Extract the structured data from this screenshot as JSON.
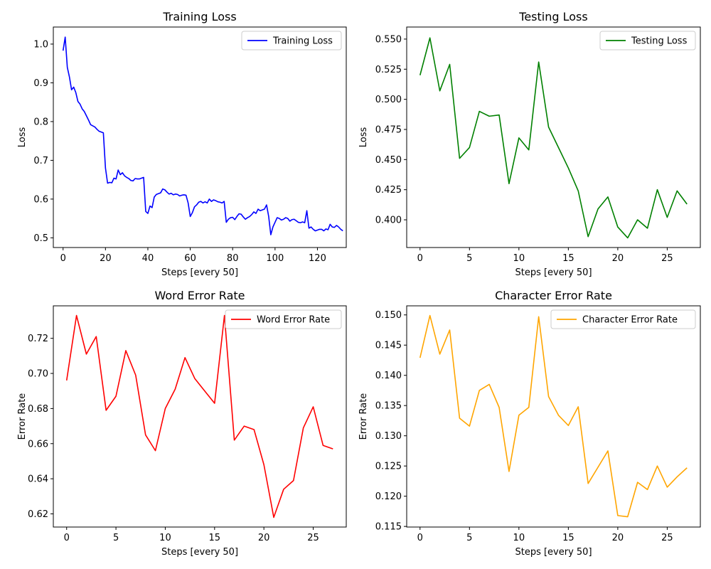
{
  "chart_data": [
    {
      "type": "line",
      "title": "Training Loss",
      "xlabel": "Steps [every 50]",
      "ylabel": "Loss",
      "xlim": [
        -4.6,
        133.6
      ],
      "ylim": [
        0.475,
        1.044
      ],
      "xticks": [
        0,
        20,
        40,
        60,
        80,
        100,
        120
      ],
      "xtick_labels": [
        "0",
        "20",
        "40",
        "60",
        "80",
        "100",
        "120"
      ],
      "yticks": [
        0.5,
        0.6,
        0.7,
        0.8,
        0.9,
        1.0
      ],
      "ytick_labels": [
        "0.5",
        "0.6",
        "0.7",
        "0.8",
        "0.9",
        "1.0"
      ],
      "legend": "top-right",
      "grid": false,
      "series": [
        {
          "name": "Training Loss",
          "color": "#0000ff",
          "x": [
            0,
            1,
            2,
            3,
            4,
            5,
            6,
            7,
            8,
            9,
            10,
            11,
            12,
            13,
            14,
            15,
            16,
            17,
            18,
            19,
            20,
            21,
            22,
            23,
            24,
            25,
            26,
            27,
            28,
            29,
            30,
            31,
            32,
            33,
            34,
            35,
            36,
            37,
            38,
            39,
            40,
            41,
            42,
            43,
            44,
            45,
            46,
            47,
            48,
            49,
            50,
            51,
            52,
            53,
            54,
            55,
            56,
            57,
            58,
            59,
            60,
            61,
            62,
            63,
            64,
            65,
            66,
            67,
            68,
            69,
            70,
            71,
            72,
            73,
            74,
            75,
            76,
            77,
            78,
            79,
            80,
            81,
            82,
            83,
            84,
            85,
            86,
            87,
            88,
            89,
            90,
            91,
            92,
            93,
            94,
            95,
            96,
            97,
            98,
            99,
            100,
            101,
            102,
            103,
            104,
            105,
            106,
            107,
            108,
            109,
            110,
            111,
            112,
            113,
            114,
            115,
            116,
            117,
            118,
            119,
            120,
            121,
            122,
            123,
            124,
            125,
            126,
            127,
            128,
            129,
            130,
            131,
            132
          ],
          "y": [
            0.983,
            1.018,
            0.94,
            0.915,
            0.882,
            0.889,
            0.875,
            0.852,
            0.845,
            0.833,
            0.826,
            0.815,
            0.804,
            0.792,
            0.789,
            0.786,
            0.78,
            0.775,
            0.773,
            0.771,
            0.68,
            0.641,
            0.643,
            0.642,
            0.654,
            0.652,
            0.675,
            0.663,
            0.668,
            0.66,
            0.656,
            0.653,
            0.648,
            0.647,
            0.653,
            0.652,
            0.652,
            0.654,
            0.656,
            0.568,
            0.563,
            0.582,
            0.578,
            0.605,
            0.612,
            0.614,
            0.616,
            0.626,
            0.624,
            0.618,
            0.613,
            0.615,
            0.611,
            0.613,
            0.612,
            0.608,
            0.61,
            0.611,
            0.61,
            0.59,
            0.555,
            0.565,
            0.58,
            0.585,
            0.592,
            0.594,
            0.59,
            0.593,
            0.59,
            0.6,
            0.594,
            0.598,
            0.596,
            0.593,
            0.592,
            0.59,
            0.594,
            0.54,
            0.548,
            0.552,
            0.553,
            0.547,
            0.555,
            0.562,
            0.561,
            0.554,
            0.548,
            0.552,
            0.555,
            0.56,
            0.567,
            0.563,
            0.574,
            0.57,
            0.572,
            0.574,
            0.585,
            0.555,
            0.508,
            0.528,
            0.54,
            0.552,
            0.55,
            0.546,
            0.548,
            0.552,
            0.55,
            0.543,
            0.547,
            0.548,
            0.544,
            0.54,
            0.539,
            0.541,
            0.539,
            0.57,
            0.525,
            0.528,
            0.522,
            0.518,
            0.52,
            0.522,
            0.522,
            0.518,
            0.523,
            0.521,
            0.535,
            0.528,
            0.527,
            0.532,
            0.528,
            0.522,
            0.518
          ]
        }
      ]
    },
    {
      "type": "line",
      "title": "Testing Loss",
      "xlabel": "Steps [every 50]",
      "ylabel": "Loss",
      "xlim": [
        -1.35,
        28.35
      ],
      "ylim": [
        0.377,
        0.56
      ],
      "xticks": [
        0,
        5,
        10,
        15,
        20,
        25
      ],
      "xtick_labels": [
        "0",
        "5",
        "10",
        "15",
        "20",
        "25"
      ],
      "yticks": [
        0.4,
        0.425,
        0.45,
        0.475,
        0.5,
        0.525,
        0.55
      ],
      "ytick_labels": [
        "0.400",
        "0.425",
        "0.450",
        "0.475",
        "0.500",
        "0.525",
        "0.550"
      ],
      "legend": "top-right",
      "grid": false,
      "series": [
        {
          "name": "Testing Loss",
          "color": "#008000",
          "x": [
            0,
            1,
            2,
            3,
            4,
            5,
            6,
            7,
            8,
            9,
            10,
            11,
            12,
            13,
            14,
            15,
            16,
            17,
            18,
            19,
            20,
            21,
            22,
            23,
            24,
            25,
            26,
            27
          ],
          "y": [
            0.52,
            0.551,
            0.507,
            0.529,
            0.451,
            0.46,
            0.49,
            0.486,
            0.487,
            0.43,
            0.468,
            0.458,
            0.531,
            0.477,
            0.46,
            0.443,
            0.424,
            0.386,
            0.409,
            0.419,
            0.394,
            0.385,
            0.4,
            0.393,
            0.425,
            0.402,
            0.424,
            0.413
          ]
        }
      ]
    },
    {
      "type": "line",
      "title": "Word Error Rate",
      "xlabel": "Steps [every 50]",
      "ylabel": "Error Rate",
      "xlim": [
        -1.35,
        28.35
      ],
      "ylim": [
        0.6125,
        0.7385
      ],
      "xticks": [
        0,
        5,
        10,
        15,
        20,
        25
      ],
      "xtick_labels": [
        "0",
        "5",
        "10",
        "15",
        "20",
        "25"
      ],
      "yticks": [
        0.62,
        0.64,
        0.66,
        0.68,
        0.7,
        0.72
      ],
      "ytick_labels": [
        "0.62",
        "0.64",
        "0.66",
        "0.68",
        "0.70",
        "0.72"
      ],
      "legend": "top-right",
      "grid": false,
      "series": [
        {
          "name": "Word Error Rate",
          "color": "#ff0000",
          "x": [
            0,
            1,
            2,
            3,
            4,
            5,
            6,
            7,
            8,
            9,
            10,
            11,
            12,
            13,
            14,
            15,
            16,
            17,
            18,
            19,
            20,
            21,
            22,
            23,
            24,
            25,
            26,
            27
          ],
          "y": [
            0.696,
            0.733,
            0.711,
            0.721,
            0.679,
            0.687,
            0.713,
            0.699,
            0.665,
            0.656,
            0.68,
            0.691,
            0.709,
            0.697,
            0.69,
            0.683,
            0.733,
            0.662,
            0.67,
            0.668,
            0.648,
            0.618,
            0.634,
            0.639,
            0.669,
            0.681,
            0.659,
            0.657
          ]
        }
      ]
    },
    {
      "type": "line",
      "title": "Character Error Rate",
      "xlabel": "Steps [every 50]",
      "ylabel": "Error Rate",
      "xlim": [
        -1.35,
        28.35
      ],
      "ylim": [
        0.1149,
        0.1515
      ],
      "xticks": [
        0,
        5,
        10,
        15,
        20,
        25
      ],
      "xtick_labels": [
        "0",
        "5",
        "10",
        "15",
        "20",
        "25"
      ],
      "yticks": [
        0.115,
        0.12,
        0.125,
        0.13,
        0.135,
        0.14,
        0.145,
        0.15
      ],
      "ytick_labels": [
        "0.115",
        "0.120",
        "0.125",
        "0.130",
        "0.135",
        "0.140",
        "0.145",
        "0.150"
      ],
      "legend": "top-right",
      "grid": false,
      "series": [
        {
          "name": "Character Error Rate",
          "color": "#ffa500",
          "x": [
            0,
            1,
            2,
            3,
            4,
            5,
            6,
            7,
            8,
            9,
            10,
            11,
            12,
            13,
            14,
            15,
            16,
            17,
            18,
            19,
            20,
            21,
            22,
            23,
            24,
            25,
            26,
            27
          ],
          "y": [
            0.1429,
            0.1499,
            0.1435,
            0.1475,
            0.1329,
            0.1316,
            0.1375,
            0.1385,
            0.1347,
            0.1241,
            0.1334,
            0.1347,
            0.1497,
            0.1365,
            0.1334,
            0.1317,
            0.1348,
            0.1221,
            0.1248,
            0.1275,
            0.1168,
            0.1166,
            0.1223,
            0.1211,
            0.125,
            0.1215,
            0.1232,
            0.1247
          ]
        }
      ]
    }
  ]
}
